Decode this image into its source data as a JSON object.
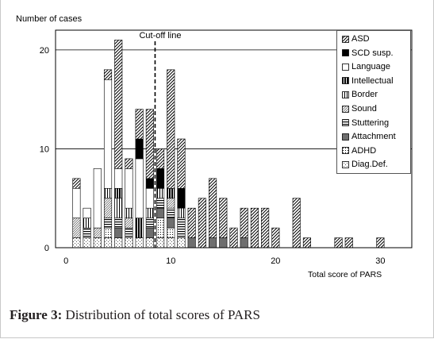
{
  "figure": {
    "y_axis_title": "Number of cases",
    "x_axis_title": "Total score of PARS",
    "caption_label": "Figure 3:",
    "caption_text": "Distribution of total scores of PARS"
  },
  "chart_data": {
    "type": "bar",
    "stacked": true,
    "xlabel": "Total score of PARS",
    "ylabel": "Number of cases",
    "xlim": [
      -1,
      33
    ],
    "ylim": [
      0,
      22
    ],
    "xticks": [
      0,
      10,
      20,
      30
    ],
    "yticks": [
      0,
      10,
      20
    ],
    "grid": "horizontal",
    "legend_position": "top-right",
    "annotations": [
      {
        "text": "Cut-off line",
        "x": 8.5,
        "style": "dashed-vertical"
      }
    ],
    "categories": [
      1,
      2,
      3,
      4,
      5,
      6,
      7,
      8,
      9,
      10,
      11,
      12,
      13,
      14,
      15,
      16,
      17,
      18,
      19,
      20,
      21,
      22,
      23,
      24,
      25,
      26,
      27,
      28,
      29,
      30
    ],
    "series": [
      {
        "name": "Diag.Def.",
        "pattern": "diag-def",
        "values": [
          1,
          1,
          1,
          1,
          1,
          1,
          1,
          1,
          1,
          1,
          1,
          0,
          0,
          0,
          0,
          0,
          0,
          0,
          0,
          0,
          0,
          0,
          0,
          0,
          0,
          0,
          0,
          0,
          0,
          0
        ]
      },
      {
        "name": "ADHD",
        "pattern": "adhd",
        "values": [
          0,
          0,
          0,
          1,
          0,
          0,
          0,
          0,
          2,
          1,
          0,
          0,
          0,
          0,
          0,
          0,
          0,
          0,
          0,
          0,
          0,
          0,
          0,
          0,
          0,
          0,
          0,
          0,
          0,
          0
        ]
      },
      {
        "name": "Attachment",
        "pattern": "attachment",
        "values": [
          0,
          0,
          0,
          0,
          1,
          0,
          0,
          1,
          1,
          1,
          0,
          1,
          0,
          1,
          1,
          0,
          1,
          0,
          0,
          0,
          0,
          0,
          0,
          0,
          0,
          0,
          0,
          0,
          0,
          0
        ]
      },
      {
        "name": "Stuttering",
        "pattern": "stuttering",
        "values": [
          0,
          1,
          0,
          1,
          1,
          1,
          0,
          1,
          1,
          1,
          2,
          0,
          0,
          0,
          0,
          0,
          0,
          0,
          0,
          0,
          0,
          0,
          0,
          0,
          0,
          0,
          0,
          0,
          0,
          0
        ]
      },
      {
        "name": "Sound",
        "pattern": "sound",
        "values": [
          2,
          0,
          1,
          2,
          0,
          1,
          0,
          0,
          0,
          1,
          0,
          0,
          0,
          0,
          0,
          0,
          0,
          0,
          0,
          0,
          0,
          0,
          0,
          0,
          0,
          0,
          0,
          0,
          0,
          0
        ]
      },
      {
        "name": "Border",
        "pattern": "border",
        "values": [
          0,
          1,
          0,
          1,
          2,
          1,
          0,
          1,
          1,
          0,
          1,
          0,
          0,
          0,
          0,
          0,
          0,
          0,
          0,
          0,
          0,
          0,
          0,
          0,
          0,
          0,
          0,
          0,
          0,
          0
        ]
      },
      {
        "name": "Intellectual",
        "pattern": "intellectual",
        "values": [
          0,
          0,
          0,
          0,
          1,
          0,
          2,
          0,
          0,
          1,
          0,
          0,
          0,
          0,
          0,
          0,
          0,
          0,
          0,
          0,
          0,
          0,
          0,
          0,
          0,
          0,
          0,
          0,
          0,
          0
        ]
      },
      {
        "name": "Language",
        "pattern": "language",
        "values": [
          3,
          1,
          6,
          11,
          2,
          4,
          6,
          2,
          0,
          0,
          0,
          0,
          0,
          0,
          0,
          0,
          0,
          0,
          0,
          0,
          0,
          0,
          0,
          0,
          0,
          0,
          0,
          0,
          0,
          0
        ]
      },
      {
        "name": "SCD susp.",
        "pattern": "scd",
        "values": [
          0,
          0,
          0,
          0,
          0,
          0,
          2,
          1,
          2,
          0,
          2,
          0,
          0,
          0,
          0,
          0,
          0,
          0,
          0,
          0,
          0,
          0,
          0,
          0,
          0,
          0,
          0,
          0,
          0,
          0
        ]
      },
      {
        "name": "ASD",
        "pattern": "asd",
        "values": [
          1,
          0,
          0,
          1,
          13,
          1,
          3,
          7,
          2,
          12,
          5,
          3,
          5,
          6,
          4,
          2,
          3,
          4,
          4,
          2,
          0,
          5,
          1,
          0,
          0,
          1,
          1,
          0,
          0,
          1
        ]
      }
    ]
  },
  "legend": {
    "items": [
      {
        "label": "ASD",
        "pattern": "asd"
      },
      {
        "label": "SCD susp.",
        "pattern": "scd"
      },
      {
        "label": "Language",
        "pattern": "language"
      },
      {
        "label": "Intellectual",
        "pattern": "intellectual"
      },
      {
        "label": "Border",
        "pattern": "border"
      },
      {
        "label": "Sound",
        "pattern": "sound"
      },
      {
        "label": "Stuttering",
        "pattern": "stuttering"
      },
      {
        "label": "Attachment",
        "pattern": "attachment"
      },
      {
        "label": "ADHD",
        "pattern": "adhd"
      },
      {
        "label": "Diag.Def.",
        "pattern": "diag-def"
      }
    ]
  }
}
